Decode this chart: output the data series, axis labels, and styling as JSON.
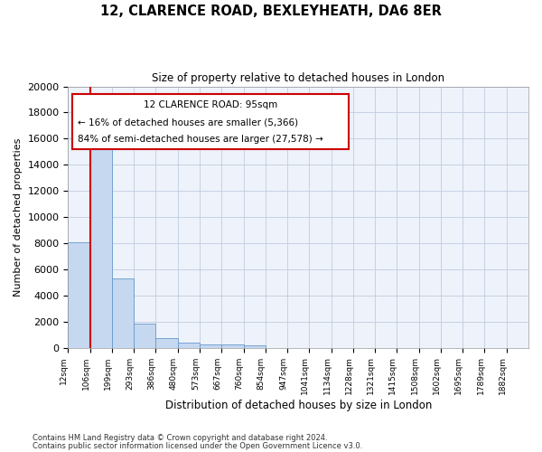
{
  "title_line1": "12, CLARENCE ROAD, BEXLEYHEATH, DA6 8ER",
  "title_line2": "Size of property relative to detached houses in London",
  "xlabel": "Distribution of detached houses by size in London",
  "ylabel": "Number of detached properties",
  "categories": [
    "12sqm",
    "106sqm",
    "199sqm",
    "293sqm",
    "386sqm",
    "480sqm",
    "573sqm",
    "667sqm",
    "760sqm",
    "854sqm",
    "947sqm",
    "1041sqm",
    "1134sqm",
    "1228sqm",
    "1321sqm",
    "1415sqm",
    "1508sqm",
    "1602sqm",
    "1695sqm",
    "1789sqm",
    "1882sqm"
  ],
  "bar_values": [
    8100,
    16600,
    5300,
    1850,
    700,
    380,
    280,
    225,
    175,
    0,
    0,
    0,
    0,
    0,
    0,
    0,
    0,
    0,
    0,
    0,
    0
  ],
  "bar_color": "#c5d8f0",
  "bar_edge_color": "#6699cc",
  "vline_x_idx": 1,
  "vline_color": "#cc0000",
  "annotation_line1": "12 CLARENCE ROAD: 95sqm",
  "annotation_line2": "← 16% of detached houses are smaller (5,366)",
  "annotation_line3": "84% of semi-detached houses are larger (27,578) →",
  "ylim": [
    0,
    20000
  ],
  "yticks": [
    0,
    2000,
    4000,
    6000,
    8000,
    10000,
    12000,
    14000,
    16000,
    18000,
    20000
  ],
  "footer_line1": "Contains HM Land Registry data © Crown copyright and database right 2024.",
  "footer_line2": "Contains public sector information licensed under the Open Government Licence v3.0.",
  "bg_color": "#eef2fa",
  "grid_color": "#c0cce0"
}
